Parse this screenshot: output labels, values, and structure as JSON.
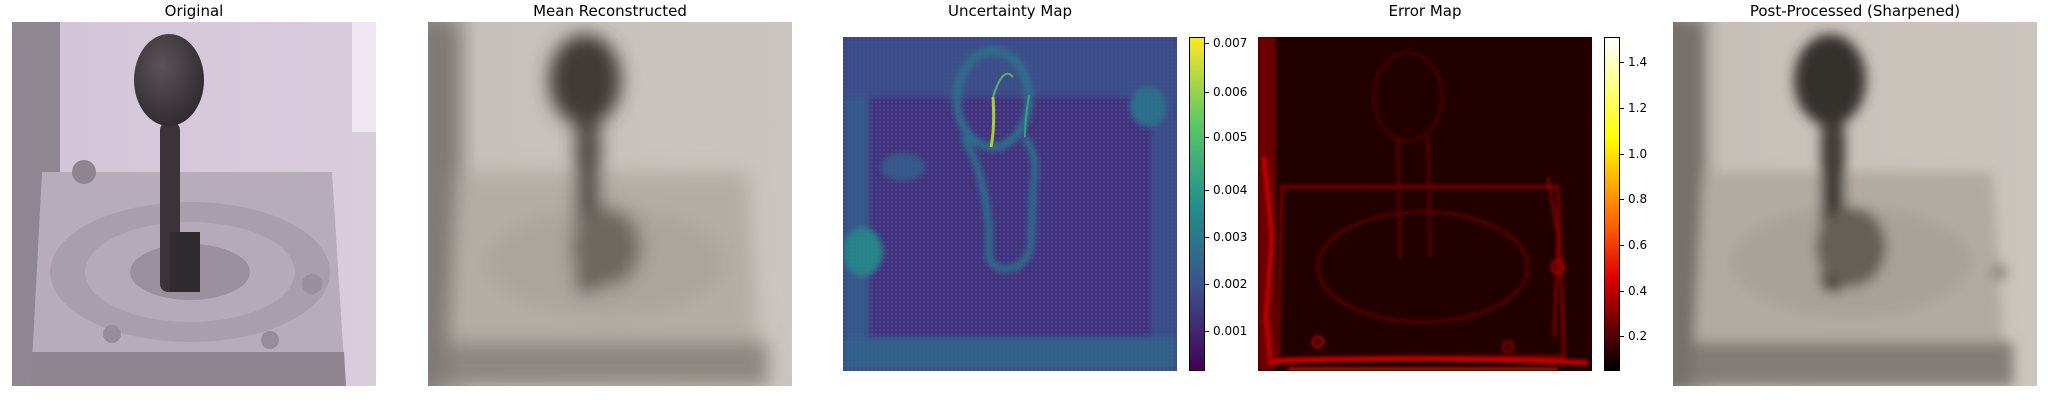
{
  "panels": {
    "original": {
      "title": "Original"
    },
    "mean": {
      "title": "Mean Reconstructed"
    },
    "uncertainty": {
      "title": "Uncertainty Map",
      "colormap": "viridis",
      "colorbar_ticks": [
        "0.007",
        "0.006",
        "0.005",
        "0.004",
        "0.003",
        "0.002",
        "0.001"
      ]
    },
    "error": {
      "title": "Error Map",
      "colormap": "hot",
      "colorbar_ticks": [
        "1.4",
        "1.2",
        "1.0",
        "0.8",
        "0.6",
        "0.4",
        "0.2"
      ]
    },
    "sharpened": {
      "title": "Post-Processed (Sharpened)"
    }
  },
  "colors": {
    "original_bg": "#d7cadb",
    "recon_bg": "#c9c3bc",
    "viridis_low": "#440154",
    "viridis_high": "#fde725",
    "hot_low": "#000000",
    "hot_high": "#ffffff"
  }
}
